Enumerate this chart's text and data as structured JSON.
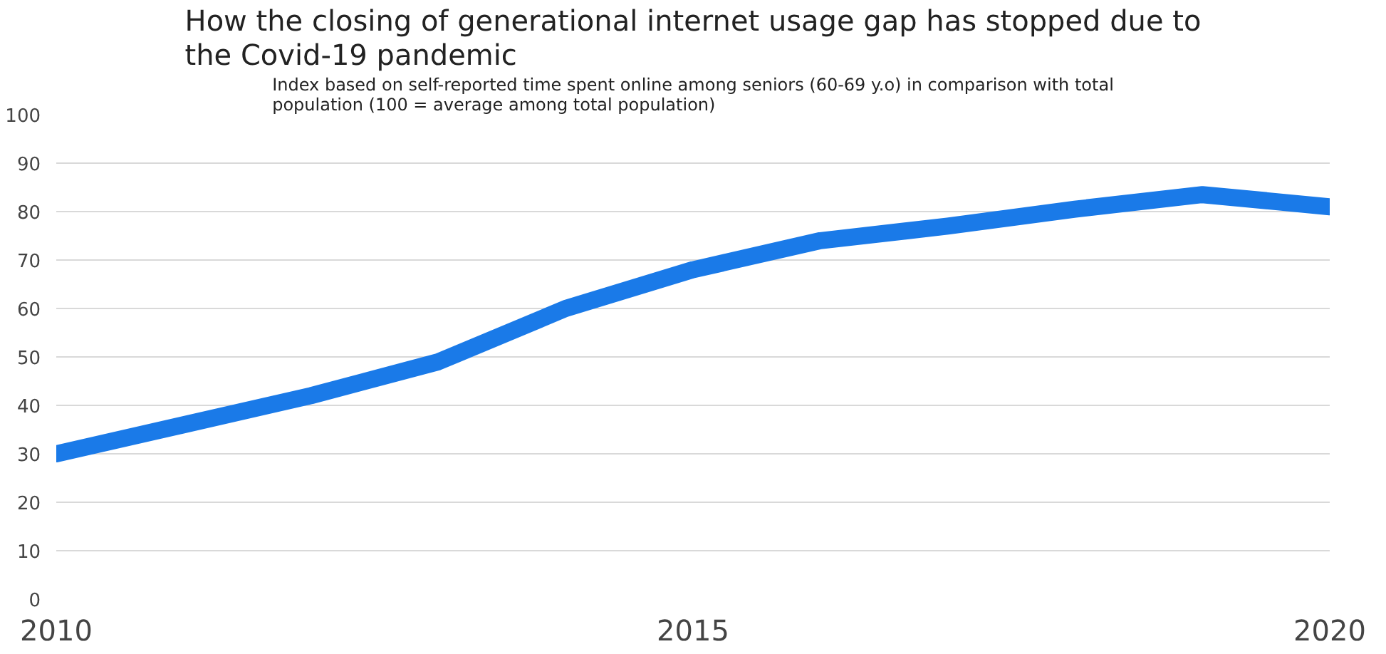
{
  "chart_data": {
    "type": "line",
    "title": "How the closing of generational internet usage gap has stopped due to the Covid-19 pandemic",
    "subtitle": "Index based on self-reported time spent online among seniors (60-69 y.o) in comparison with total population (100 = average among total population)",
    "x": [
      2010,
      2011,
      2012,
      2013,
      2014,
      2015,
      2016,
      2017,
      2018,
      2019,
      2020
    ],
    "series": [
      {
        "color": "#1a7ae8",
        "values": [
          30,
          36,
          42,
          49,
          60,
          68,
          74,
          77,
          80.5,
          83.5,
          81
        ]
      }
    ],
    "xlim": [
      2010,
      2020
    ],
    "xticks": [
      2010,
      2015,
      2020
    ],
    "ylim": [
      0,
      100
    ],
    "yticks": [
      0,
      10,
      20,
      30,
      40,
      50,
      60,
      70,
      80,
      90,
      100
    ],
    "grid": "y",
    "line_style": "solid",
    "marker": "none"
  }
}
